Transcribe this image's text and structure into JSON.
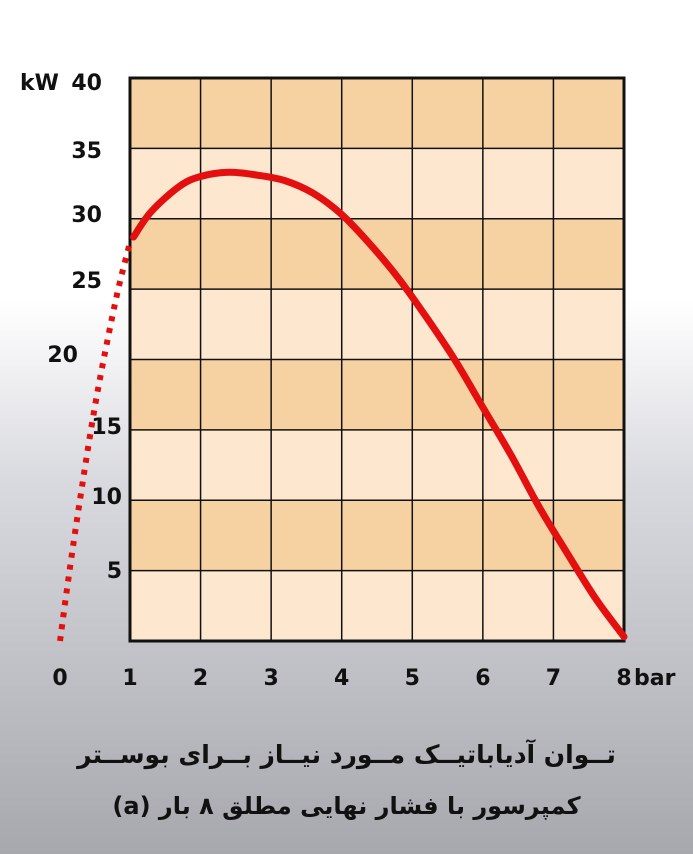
{
  "chart_data": {
    "type": "line",
    "title": "",
    "xlabel": "",
    "ylabel": "",
    "x_unit": "bar",
    "y_unit": "kW",
    "xlim": [
      0,
      8
    ],
    "ylim": [
      0,
      40
    ],
    "x_ticks": [
      "0",
      "1",
      "2",
      "3",
      "4",
      "5",
      "6",
      "7",
      "8"
    ],
    "y_ticks": [
      "5",
      "10",
      "15",
      "20",
      "25",
      "30",
      "35",
      "40"
    ],
    "grid": true,
    "series": [
      {
        "style": "solid",
        "color": "#e3100f",
        "x": [
          1.05,
          1.3,
          1.7,
          2.0,
          2.4,
          2.8,
          3.2,
          3.6,
          4.0,
          4.4,
          4.8,
          5.2,
          5.6,
          6.0,
          6.4,
          6.8,
          7.2,
          7.6,
          8.0
        ],
        "y": [
          28.7,
          30.5,
          32.3,
          33.0,
          33.3,
          33.1,
          32.7,
          31.8,
          30.3,
          28.2,
          25.8,
          23.0,
          20.0,
          16.6,
          13.2,
          9.5,
          6.2,
          3.0,
          0.3
        ]
      },
      {
        "style": "dotted",
        "color": "#e3100f",
        "x": [
          0,
          0.1,
          0.2,
          0.3,
          0.4,
          0.5,
          0.6,
          0.7,
          0.8,
          0.9,
          1.0
        ],
        "y": [
          0,
          3.7,
          7.2,
          10.5,
          13.7,
          16.7,
          19.4,
          21.9,
          24.3,
          26.4,
          28.3
        ]
      }
    ],
    "colors": {
      "band_dark": "#f6d2a3",
      "band_light": "#fde7cf",
      "grid": "#111111"
    }
  },
  "caption": {
    "line1": "تــوان آدیاباتیــک مــورد نیــاز بــرای بوســتر",
    "line2": "کمپرسور با فشار نهایی مطلق ۸ بار (a)"
  }
}
